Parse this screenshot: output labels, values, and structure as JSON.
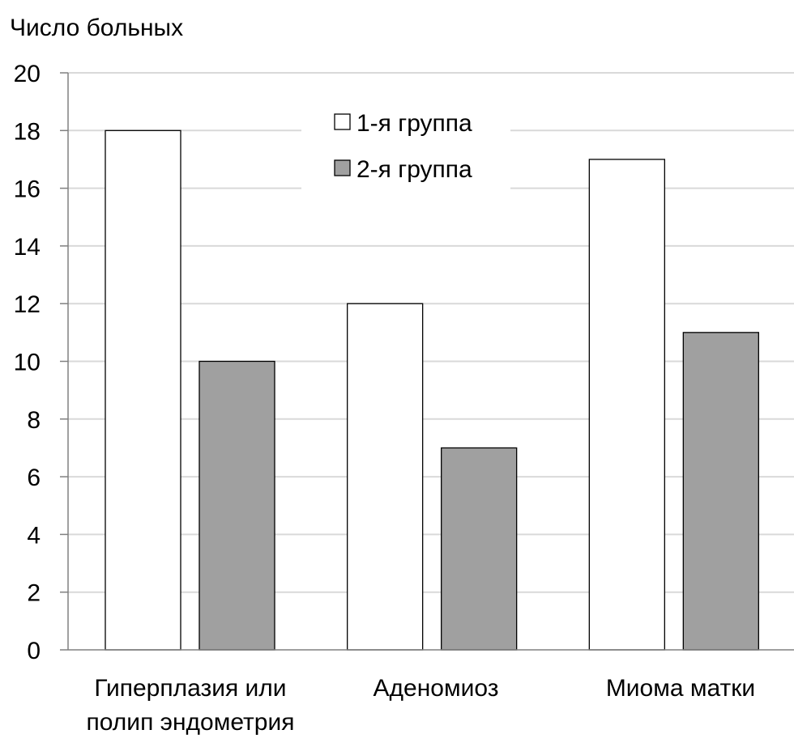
{
  "chart_data": {
    "type": "bar",
    "title": "",
    "ylabel": "Число больных",
    "xlabel": "",
    "categories": [
      [
        "Гиперплазия или",
        "полип эндометрия"
      ],
      [
        "Аденомиоз"
      ],
      [
        "Миома матки"
      ]
    ],
    "series": [
      {
        "name": "1-я группа",
        "color": "#ffffff",
        "values": [
          18,
          12,
          17
        ]
      },
      {
        "name": "2-я группа",
        "color": "#a0a0a0",
        "values": [
          10,
          7,
          11
        ]
      }
    ],
    "ylim": [
      0,
      20
    ],
    "yticks": [
      0,
      2,
      4,
      6,
      8,
      10,
      12,
      14,
      16,
      18,
      20
    ],
    "grid": true,
    "legend_position": "top-center"
  }
}
